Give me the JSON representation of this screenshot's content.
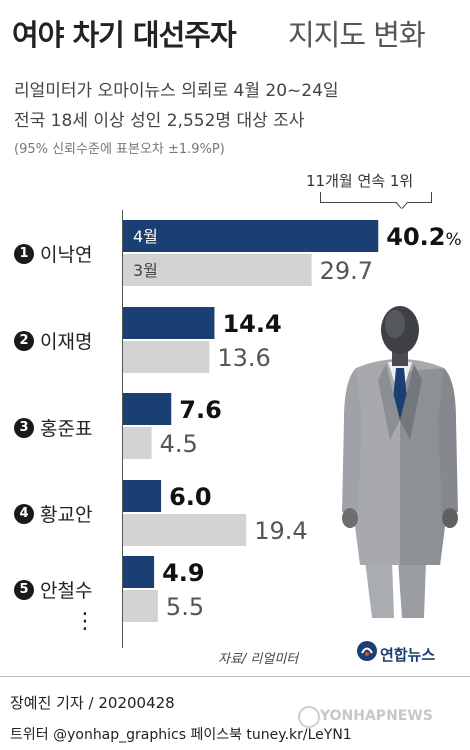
{
  "title": {
    "main": "여야 차기 대선주자",
    "sub": "지지도 변화"
  },
  "subtitle": {
    "line1": "리얼미터가 오마이뉴스 의뢰로 4월 20~24일",
    "line2": "전국 18세 이상 성인 2,552명 대상 조사",
    "line3": "(95% 신뢰수준에 표본오차 ±1.9%P)"
  },
  "callout": "11개월 연속 1위",
  "continuation": "⋮",
  "source": "자료/ 리얼미터",
  "logo_text": "연합뉴스",
  "footer": {
    "reporter": "장예진 기자 / 20200428",
    "social": "트위터 @yonhap_graphics  페이스북 tuney.kr/LeYN1",
    "watermark": "YONHAPNEWS"
  },
  "colors": {
    "current": "#1c3f73",
    "previous": "#d3d3d3",
    "text_current": "#111111",
    "text_previous": "#444444"
  },
  "chart_data": {
    "type": "bar",
    "orientation": "horizontal",
    "categories": [
      "이낙연",
      "이재명",
      "홍준표",
      "황교안",
      "안철수"
    ],
    "ranks": [
      "1",
      "2",
      "3",
      "4",
      "5"
    ],
    "series": [
      {
        "name": "4월",
        "values": [
          40.2,
          14.4,
          7.6,
          6.0,
          4.9
        ]
      },
      {
        "name": "3월",
        "values": [
          29.7,
          13.6,
          4.5,
          19.4,
          5.5
        ]
      }
    ],
    "value_labels": {
      "current": [
        "40.2",
        "14.4",
        "7.6",
        "6.0",
        "4.9"
      ],
      "previous": [
        "29.7",
        "13.6",
        "4.5",
        "19.4",
        "5.5"
      ]
    },
    "unit": "%"
  }
}
